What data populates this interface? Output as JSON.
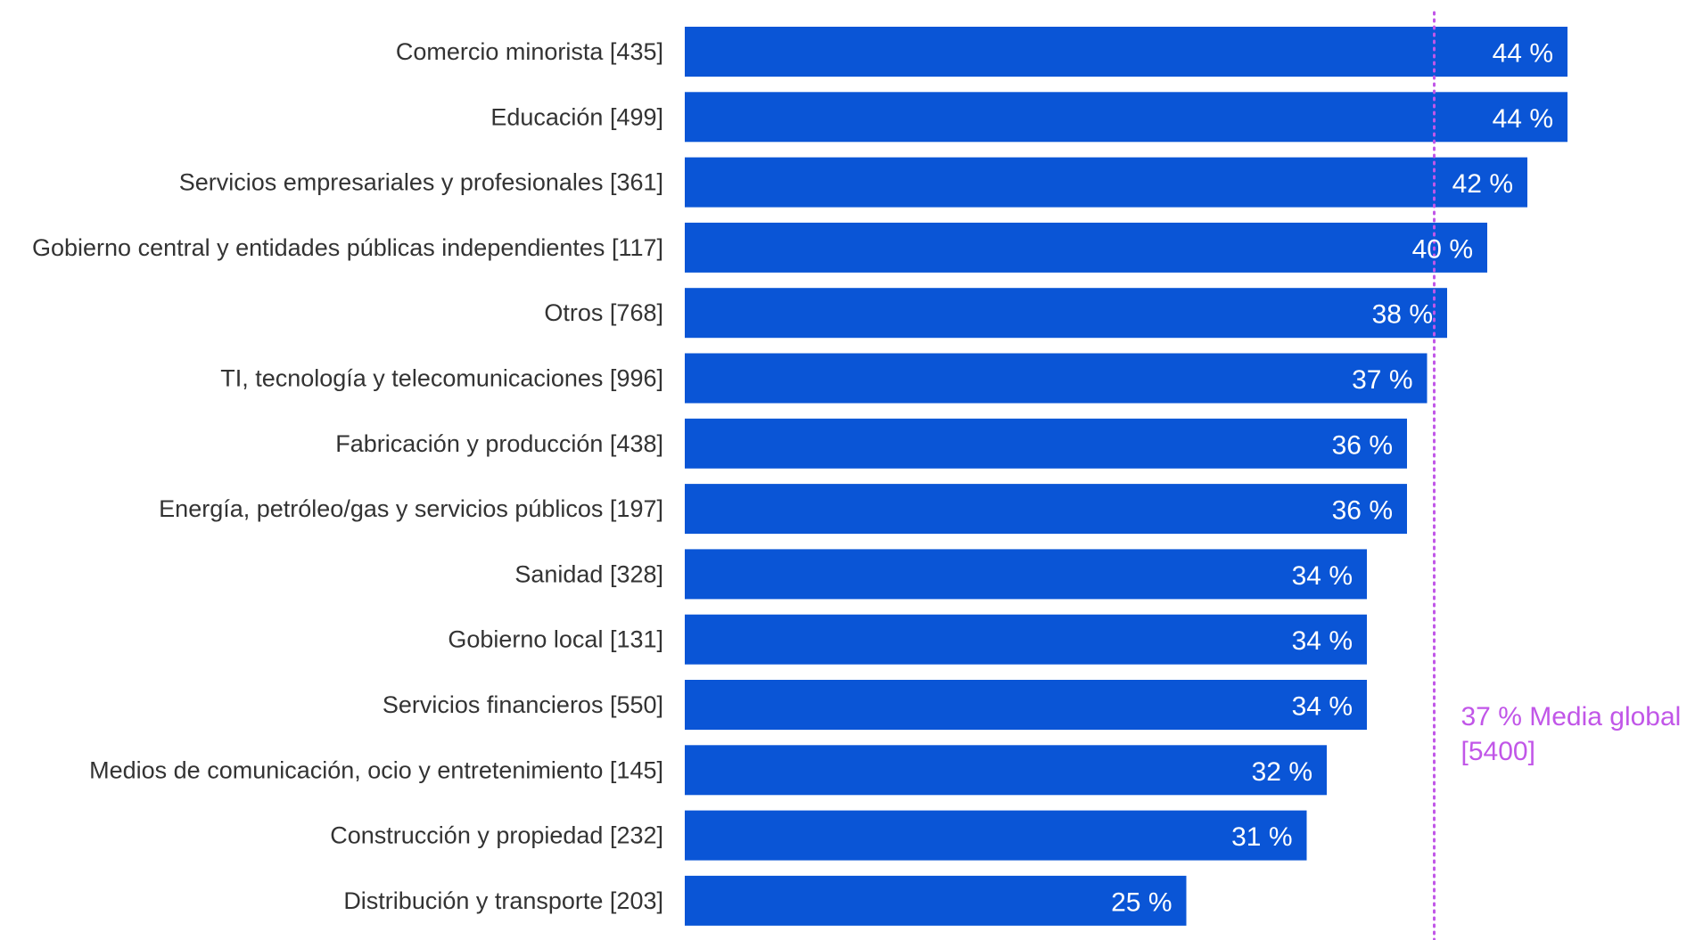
{
  "chart_data": {
    "type": "bar",
    "orientation": "horizontal",
    "categories": [
      "Comercio minorista [435]",
      "Educación [499]",
      "Servicios empresariales y profesionales [361]",
      "Gobierno central y entidades públicas independientes [117]",
      "Otros [768]",
      "TI, tecnología y telecomunicaciones [996]",
      "Fabricación y producción [438]",
      "Energía, petróleo/gas y servicios públicos [197]",
      "Sanidad [328]",
      "Gobierno local [131]",
      "Servicios financieros [550]",
      "Medios de comunicación, ocio y entretenimiento [145]",
      "Construcción y propiedad [232]",
      "Distribución y transporte [203]"
    ],
    "values": [
      44,
      44,
      42,
      40,
      38,
      37,
      36,
      36,
      34,
      34,
      34,
      32,
      31,
      25
    ],
    "value_labels": [
      "44 %",
      "44 %",
      "42 %",
      "40 %",
      "38 %",
      "37 %",
      "36 %",
      "36 %",
      "34 %",
      "34 %",
      "34 %",
      "32 %",
      "31 %",
      "25 %"
    ],
    "xlim": [
      0,
      44
    ],
    "grid": false,
    "bar_color": "#0A55D6",
    "reference_line": {
      "value": 37,
      "label_line1": "37 % Media global",
      "label_line2": "[5400]",
      "color": "#C156E8",
      "style": "dotted"
    }
  }
}
